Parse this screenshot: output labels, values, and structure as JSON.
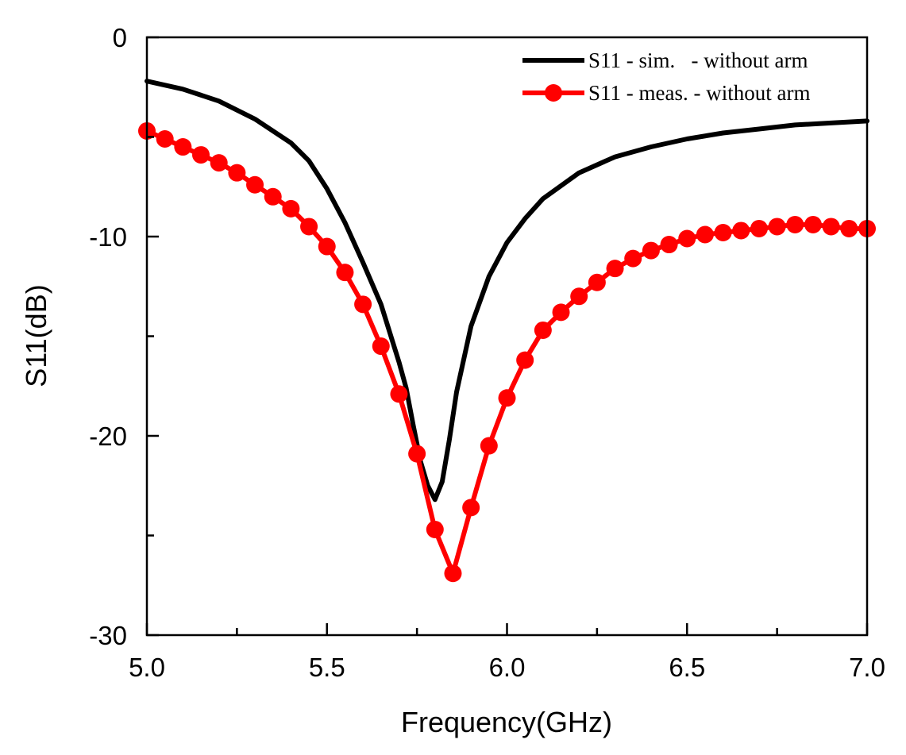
{
  "chart_data": {
    "type": "line",
    "title": "",
    "xlabel": "Frequency(GHz)",
    "ylabel": "S11(dB)",
    "xlim": [
      5.0,
      7.0
    ],
    "ylim": [
      -30,
      0
    ],
    "xticks": [
      5.0,
      5.5,
      6.0,
      6.5,
      7.0
    ],
    "xtick_labels": [
      "5.0",
      "5.5",
      "6.0",
      "6.5",
      "7.0"
    ],
    "xminor": [
      5.25,
      5.75,
      6.25,
      6.75
    ],
    "yticks": [
      0,
      -10,
      -20,
      -30
    ],
    "ytick_labels": [
      "0",
      "-10",
      "-20",
      "-30"
    ],
    "yminor": [
      -5,
      -15,
      -25
    ],
    "grid": false,
    "legend_position": "top-right",
    "series": [
      {
        "name": "S11 - sim.   - without arm",
        "color": "#000000",
        "marker": "none",
        "x": [
          5.0,
          5.1,
          5.2,
          5.3,
          5.4,
          5.45,
          5.5,
          5.55,
          5.6,
          5.65,
          5.7,
          5.72,
          5.74,
          5.76,
          5.78,
          5.8,
          5.82,
          5.84,
          5.86,
          5.9,
          5.95,
          6.0,
          6.05,
          6.1,
          6.2,
          6.3,
          6.4,
          6.5,
          6.6,
          6.7,
          6.8,
          6.9,
          7.0
        ],
        "y": [
          -2.2,
          -2.6,
          -3.2,
          -4.1,
          -5.3,
          -6.2,
          -7.6,
          -9.3,
          -11.3,
          -13.4,
          -16.3,
          -17.6,
          -19.5,
          -21.3,
          -22.5,
          -23.2,
          -22.3,
          -20.2,
          -17.8,
          -14.5,
          -12.0,
          -10.3,
          -9.1,
          -8.1,
          -6.8,
          -6.0,
          -5.5,
          -5.1,
          -4.8,
          -4.6,
          -4.4,
          -4.3,
          -4.2
        ]
      },
      {
        "name": "S11 - meas. - without arm",
        "color": "#ff0000",
        "marker": "circle",
        "x": [
          5.0,
          5.05,
          5.1,
          5.15,
          5.2,
          5.25,
          5.3,
          5.35,
          5.4,
          5.45,
          5.5,
          5.55,
          5.6,
          5.65,
          5.7,
          5.75,
          5.8,
          5.85,
          5.9,
          5.95,
          6.0,
          6.05,
          6.1,
          6.15,
          6.2,
          6.25,
          6.3,
          6.35,
          6.4,
          6.45,
          6.5,
          6.55,
          6.6,
          6.65,
          6.7,
          6.75,
          6.8,
          6.85,
          6.9,
          6.95,
          7.0
        ],
        "y": [
          -4.7,
          -5.1,
          -5.5,
          -5.9,
          -6.3,
          -6.8,
          -7.4,
          -8.0,
          -8.6,
          -9.5,
          -10.5,
          -11.8,
          -13.4,
          -15.5,
          -17.9,
          -20.9,
          -24.7,
          -26.9,
          -23.6,
          -20.5,
          -18.1,
          -16.2,
          -14.7,
          -13.8,
          -13.0,
          -12.3,
          -11.6,
          -11.1,
          -10.7,
          -10.4,
          -10.1,
          -9.9,
          -9.8,
          -9.7,
          -9.6,
          -9.5,
          -9.4,
          -9.4,
          -9.5,
          -9.6,
          -9.6
        ]
      }
    ]
  }
}
